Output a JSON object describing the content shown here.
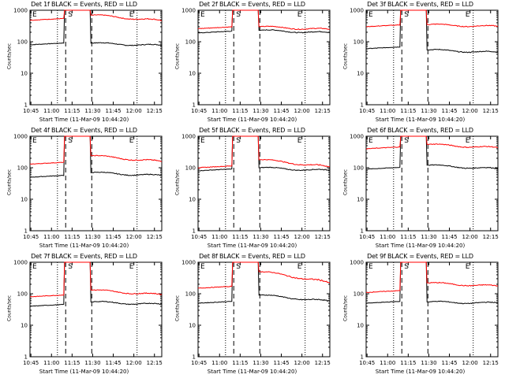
{
  "chart_data": [
    {
      "type": "line",
      "title": "Det 1f BLACK = Events, RED = LLD",
      "ylabel": "Counts/sec",
      "xlabel": "Start Time (11-Mar-09 10:44:20)",
      "x_ticks": [
        "10:45",
        "11:00",
        "11:15",
        "11:30",
        "11:45",
        "12:00",
        "12:15"
      ],
      "y_ticks": [
        "1",
        "10",
        "100",
        "1000"
      ],
      "yscale": "log",
      "ylim": [
        1,
        1000
      ],
      "markers": [
        "E",
        "S",
        "E"
      ],
      "series": [
        {
          "color": "#000000",
          "levels": [
            80,
            90,
            75
          ]
        },
        {
          "color": "#ff0000",
          "levels": [
            480,
            700,
            450
          ]
        }
      ]
    },
    {
      "type": "line",
      "title": "Det 2f BLACK = Events, RED = LLD",
      "ylabel": "Counts/sec",
      "xlabel": "Start Time (11-Mar-09 10:44:20)",
      "x_ticks": [
        "10:45",
        "11:00",
        "11:15",
        "11:30",
        "11:45",
        "12:00",
        "12:15"
      ],
      "y_ticks": [
        "1",
        "10",
        "100",
        "1000"
      ],
      "yscale": "log",
      "ylim": [
        1,
        1000
      ],
      "markers": [
        "E",
        "S",
        "E"
      ],
      "series": [
        {
          "color": "#000000",
          "levels": [
            190,
            230,
            190
          ]
        },
        {
          "color": "#ff0000",
          "levels": [
            260,
            300,
            240
          ]
        }
      ]
    },
    {
      "type": "line",
      "title": "Det 3f BLACK = Events, RED = LLD",
      "ylabel": "Counts/sec",
      "xlabel": "Start Time (11-Mar-09 10:44:20)",
      "x_ticks": [
        "10:45",
        "11:00",
        "11:15",
        "11:30",
        "11:45",
        "12:00",
        "12:15"
      ],
      "y_ticks": [
        "1",
        "10",
        "100",
        "1000"
      ],
      "yscale": "log",
      "ylim": [
        1,
        1000
      ],
      "markers": [
        "E",
        "S",
        "E"
      ],
      "series": [
        {
          "color": "#000000",
          "levels": [
            60,
            55,
            45
          ]
        },
        {
          "color": "#ff0000",
          "levels": [
            300,
            350,
            300
          ]
        }
      ]
    },
    {
      "type": "line",
      "title": "Det 4f BLACK = Events, RED = LLD",
      "ylabel": "Counts/sec",
      "xlabel": "Start Time (11-Mar-09 10:44:20)",
      "x_ticks": [
        "10:45",
        "11:00",
        "11:15",
        "11:30",
        "11:45",
        "12:00",
        "12:15"
      ],
      "y_ticks": [
        "1",
        "10",
        "100",
        "1000"
      ],
      "yscale": "log",
      "ylim": [
        1,
        1000
      ],
      "markers": [
        "E",
        "S",
        "E"
      ],
      "series": [
        {
          "color": "#000000",
          "levels": [
            50,
            70,
            55
          ]
        },
        {
          "color": "#ff0000",
          "levels": [
            130,
            240,
            150
          ]
        }
      ]
    },
    {
      "type": "line",
      "title": "Det 5f BLACK = Events, RED = LLD",
      "ylabel": "Counts/sec",
      "xlabel": "Start Time (11-Mar-09 10:44:20)",
      "x_ticks": [
        "10:45",
        "11:00",
        "11:15",
        "11:30",
        "11:45",
        "12:00",
        "12:15"
      ],
      "y_ticks": [
        "1",
        "10",
        "100",
        "1000"
      ],
      "yscale": "log",
      "ylim": [
        1,
        1000
      ],
      "markers": [
        "E",
        "S",
        "E"
      ],
      "series": [
        {
          "color": "#000000",
          "levels": [
            80,
            100,
            80
          ]
        },
        {
          "color": "#ff0000",
          "levels": [
            100,
            180,
            100
          ]
        }
      ]
    },
    {
      "type": "line",
      "title": "Det 6f BLACK = Events, RED = LLD",
      "ylabel": "Counts/sec",
      "xlabel": "Start Time (11-Mar-09 10:44:20)",
      "x_ticks": [
        "10:45",
        "11:00",
        "11:15",
        "11:30",
        "11:45",
        "12:00",
        "12:15"
      ],
      "y_ticks": [
        "1",
        "10",
        "100",
        "1000"
      ],
      "yscale": "log",
      "ylim": [
        1,
        1000
      ],
      "markers": [
        "E",
        "S",
        "E"
      ],
      "series": [
        {
          "color": "#000000",
          "levels": [
            90,
            120,
            90
          ]
        },
        {
          "color": "#ff0000",
          "levels": [
            400,
            550,
            420
          ]
        }
      ]
    },
    {
      "type": "line",
      "title": "Det 7f BLACK = Events, RED = LLD",
      "ylabel": "Counts/sec",
      "xlabel": "Start Time (11-Mar-09 10:44:20)",
      "x_ticks": [
        "10:45",
        "11:00",
        "11:15",
        "11:30",
        "11:45",
        "12:00",
        "12:15"
      ],
      "y_ticks": [
        "1",
        "10",
        "100",
        "1000"
      ],
      "yscale": "log",
      "ylim": [
        1,
        1000
      ],
      "markers": [
        "E",
        "S",
        "E"
      ],
      "series": [
        {
          "color": "#000000",
          "levels": [
            40,
            55,
            45
          ]
        },
        {
          "color": "#ff0000",
          "levels": [
            80,
            130,
            90
          ]
        }
      ]
    },
    {
      "type": "line",
      "title": "Det 8f BLACK = Events, RED = LLD",
      "ylabel": "Counts/sec",
      "xlabel": "Start Time (11-Mar-09 10:44:20)",
      "x_ticks": [
        "10:45",
        "11:00",
        "11:15",
        "11:30",
        "11:45",
        "12:00",
        "12:15"
      ],
      "y_ticks": [
        "1",
        "10",
        "100",
        "1000"
      ],
      "yscale": "log",
      "ylim": [
        1,
        1000
      ],
      "markers": [
        "E",
        "S",
        "E"
      ],
      "series": [
        {
          "color": "#000000",
          "levels": [
            50,
            90,
            55
          ]
        },
        {
          "color": "#ff0000",
          "levels": [
            150,
            500,
            200
          ]
        }
      ]
    },
    {
      "type": "line",
      "title": "Det 9f BLACK = Events, RED = LLD",
      "ylabel": "Counts/sec",
      "xlabel": "Start Time (11-Mar-09 10:44:20)",
      "x_ticks": [
        "10:45",
        "11:00",
        "11:15",
        "11:30",
        "11:45",
        "12:00",
        "12:15"
      ],
      "y_ticks": [
        "1",
        "10",
        "100",
        "1000"
      ],
      "yscale": "log",
      "ylim": [
        1,
        1000
      ],
      "markers": [
        "E",
        "S",
        "E"
      ],
      "series": [
        {
          "color": "#000000",
          "levels": [
            50,
            55,
            50
          ]
        },
        {
          "color": "#ff0000",
          "levels": [
            110,
            220,
            170
          ]
        }
      ]
    }
  ]
}
